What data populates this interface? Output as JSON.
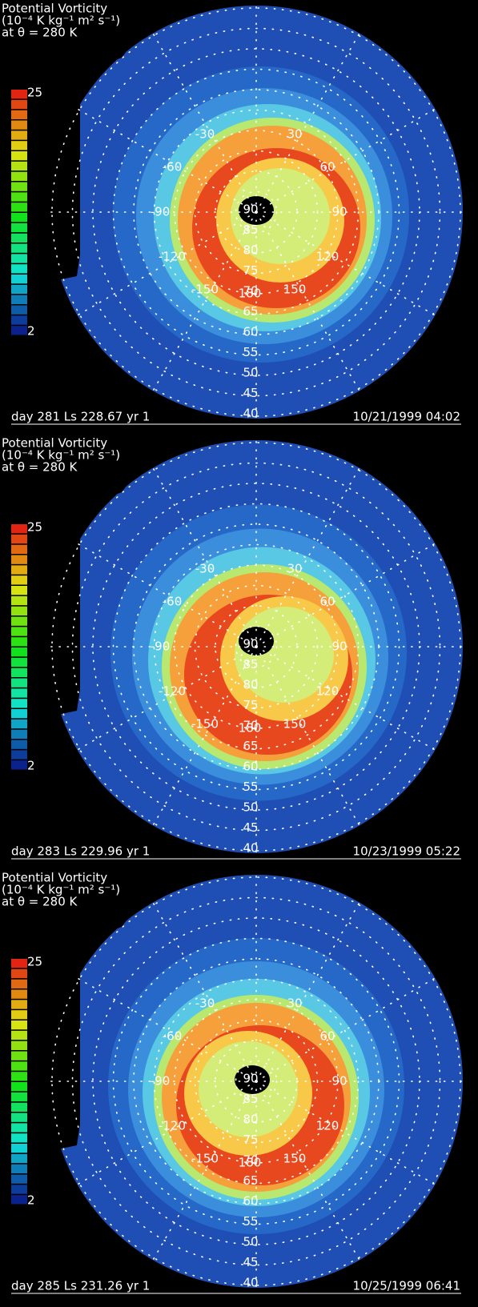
{
  "panels": [
    {
      "title": [
        "Potential Vorticity",
        "(10⁻⁴ K kg⁻¹ m² s⁻¹)",
        "at θ =  280 K"
      ],
      "colorbar": {
        "max": "25",
        "min": "2"
      },
      "longitudes": [
        "180",
        "150",
        "-150",
        "120",
        "-120",
        "90",
        "-90",
        "60",
        "-60",
        "30",
        "-30"
      ],
      "latitudes": [
        "90",
        "85",
        "80",
        "75",
        "70",
        "65",
        "60",
        "55",
        "50",
        "45",
        "40"
      ],
      "footer_left": "day 281 Ls 228.67 yr  1",
      "footer_right": "10/21/1999 04:02"
    },
    {
      "title": [
        "Potential Vorticity",
        "(10⁻⁴ K kg⁻¹ m² s⁻¹)",
        "at θ =  280 K"
      ],
      "colorbar": {
        "max": "25",
        "min": "2"
      },
      "longitudes": [
        "180",
        "150",
        "-150",
        "120",
        "-120",
        "90",
        "-90",
        "60",
        "-60",
        "30",
        "-30"
      ],
      "latitudes": [
        "90",
        "85",
        "80",
        "75",
        "70",
        "65",
        "60",
        "55",
        "50",
        "45",
        "40"
      ],
      "footer_left": "day 283 Ls 229.96 yr  1",
      "footer_right": "10/23/1999 05:22"
    },
    {
      "title": [
        "Potential Vorticity",
        "(10⁻⁴ K kg⁻¹ m² s⁻¹)",
        "at θ =  280 K"
      ],
      "colorbar": {
        "max": "25",
        "min": "2"
      },
      "longitudes": [
        "180",
        "150",
        "-150",
        "120",
        "-120",
        "90",
        "-90",
        "60",
        "-60",
        "30",
        "-30"
      ],
      "latitudes": [
        "90",
        "85",
        "80",
        "75",
        "70",
        "65",
        "60",
        "55",
        "50",
        "45",
        "40"
      ],
      "footer_left": "day 285 Ls 231.26 yr  1",
      "footer_right": "10/25/1999 06:41"
    }
  ]
}
